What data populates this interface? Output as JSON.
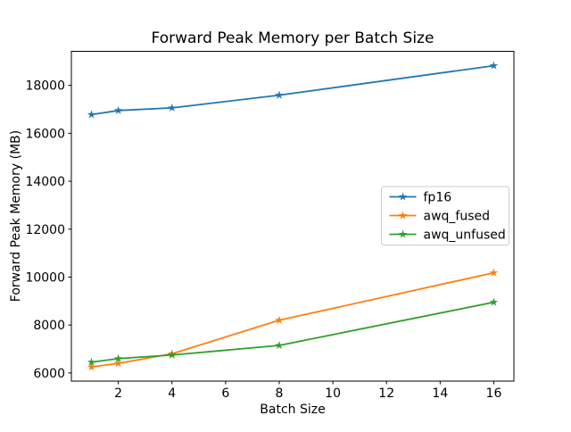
{
  "chart_data": {
    "type": "line",
    "title": "Forward Peak Memory per Batch Size",
    "xlabel": "Batch Size",
    "ylabel": "Forward Peak Memory (MB)",
    "x": [
      1,
      2,
      4,
      8,
      16
    ],
    "series": [
      {
        "name": "fp16",
        "color": "#1f77b4",
        "values": [
          16780,
          16950,
          17060,
          17590,
          18820
        ]
      },
      {
        "name": "awq_fused",
        "color": "#ff7f0e",
        "values": [
          6250,
          6400,
          6800,
          8200,
          10180
        ]
      },
      {
        "name": "awq_unfused",
        "color": "#2ca02c",
        "values": [
          6450,
          6600,
          6750,
          7150,
          8950
        ]
      }
    ],
    "marker": "star",
    "xticks": [
      2,
      4,
      6,
      8,
      10,
      12,
      14,
      16
    ],
    "yticks": [
      6000,
      8000,
      10000,
      12000,
      14000,
      16000,
      18000
    ],
    "xlim": [
      0.25,
      16.75
    ],
    "ylim": [
      5660,
      19420
    ],
    "grid": false,
    "legend_position": "center-right",
    "axes_color": "#000000",
    "legend_border_color": "#cccccc",
    "background_color": "#ffffff"
  }
}
